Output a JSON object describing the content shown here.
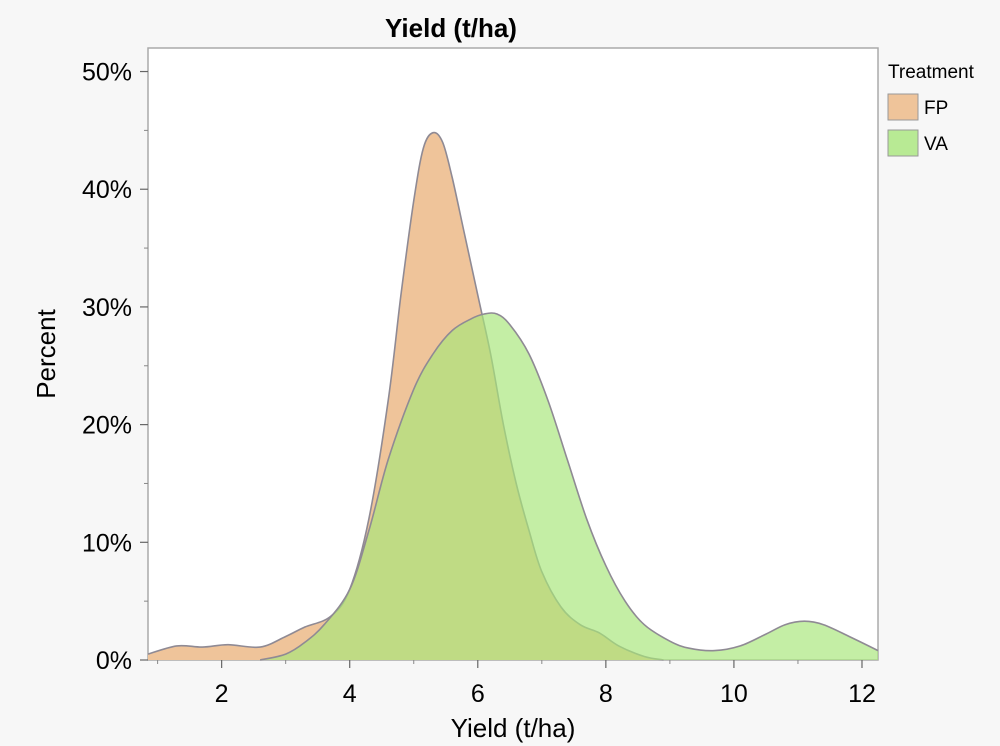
{
  "chart_data": {
    "type": "area",
    "title": "Yield (t/ha)",
    "xlabel": "Yield (t/ha)",
    "ylabel": "Percent",
    "xlim": [
      0.85,
      12.25
    ],
    "ylim": [
      0,
      0.52
    ],
    "x_ticks": [
      2,
      4,
      6,
      8,
      10,
      12
    ],
    "y_ticks": [
      0,
      0.1,
      0.2,
      0.3,
      0.4,
      0.5
    ],
    "y_tick_labels": [
      "0%",
      "10%",
      "20%",
      "30%",
      "40%",
      "50%"
    ],
    "grid": false,
    "legend": {
      "title": "Treatment",
      "position": "right-top"
    },
    "series": [
      {
        "name": "FP",
        "color": "#efc49a",
        "opacity": 1.0,
        "x": [
          0.85,
          1.3,
          1.7,
          2.1,
          2.6,
          3.0,
          3.3,
          3.7,
          4.0,
          4.3,
          4.6,
          4.8,
          5.0,
          5.15,
          5.3,
          5.45,
          5.6,
          5.8,
          6.0,
          6.2,
          6.4,
          6.6,
          6.8,
          7.0,
          7.3,
          7.6,
          7.9,
          8.2,
          8.6,
          8.9
        ],
        "y": [
          0.005,
          0.012,
          0.011,
          0.013,
          0.011,
          0.02,
          0.028,
          0.037,
          0.06,
          0.12,
          0.22,
          0.31,
          0.39,
          0.435,
          0.448,
          0.44,
          0.41,
          0.36,
          0.31,
          0.26,
          0.2,
          0.15,
          0.11,
          0.075,
          0.045,
          0.03,
          0.023,
          0.012,
          0.003,
          0.0
        ]
      },
      {
        "name": "VA",
        "color": "#a8e67a",
        "opacity": 0.68,
        "x": [
          2.6,
          3.0,
          3.3,
          3.6,
          4.0,
          4.3,
          4.6,
          5.0,
          5.3,
          5.6,
          5.9,
          6.1,
          6.3,
          6.5,
          6.8,
          7.1,
          7.4,
          7.7,
          8.0,
          8.3,
          8.6,
          9.0,
          9.3,
          9.7,
          10.1,
          10.5,
          10.8,
          11.1,
          11.4,
          11.8,
          12.25
        ],
        "y": [
          0.0,
          0.005,
          0.015,
          0.03,
          0.06,
          0.11,
          0.17,
          0.23,
          0.26,
          0.28,
          0.29,
          0.294,
          0.294,
          0.285,
          0.26,
          0.22,
          0.17,
          0.12,
          0.08,
          0.05,
          0.03,
          0.016,
          0.01,
          0.008,
          0.012,
          0.022,
          0.03,
          0.033,
          0.03,
          0.02,
          0.008
        ]
      }
    ]
  }
}
